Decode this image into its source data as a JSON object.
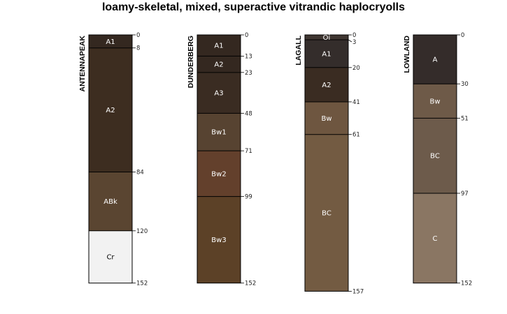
{
  "title": "loamy-skeletal, mixed, superactive vitrandic haplocryolls",
  "chart_data": {
    "type": "soil_profile",
    "depth_units": "cm",
    "profiles": [
      {
        "name": "ANTENNAPEAK",
        "bottom": 152,
        "horizons": [
          {
            "name": "A1",
            "top": 0,
            "bottom": 8,
            "color": "#342820",
            "text_color": "#ffffff"
          },
          {
            "name": "A2",
            "top": 8,
            "bottom": 84,
            "color": "#3d2d20",
            "text_color": "#ffffff"
          },
          {
            "name": "ABk",
            "top": 84,
            "bottom": 120,
            "color": "#5a4531",
            "text_color": "#ffffff"
          },
          {
            "name": "Cr",
            "top": 120,
            "bottom": 152,
            "color": "#f2f2f2",
            "text_color": "#000000"
          }
        ]
      },
      {
        "name": "DUNDERBERG",
        "bottom": 152,
        "horizons": [
          {
            "name": "A1",
            "top": 0,
            "bottom": 13,
            "color": "#342820",
            "text_color": "#ffffff"
          },
          {
            "name": "A2",
            "top": 13,
            "bottom": 23,
            "color": "#342820",
            "text_color": "#ffffff"
          },
          {
            "name": "A3",
            "top": 23,
            "bottom": 48,
            "color": "#3a2c22",
            "text_color": "#ffffff"
          },
          {
            "name": "Bw1",
            "top": 48,
            "bottom": 71,
            "color": "#574331",
            "text_color": "#ffffff"
          },
          {
            "name": "Bw2",
            "top": 71,
            "bottom": 99,
            "color": "#63402c",
            "text_color": "#ffffff"
          },
          {
            "name": "Bw3",
            "top": 99,
            "bottom": 152,
            "color": "#5c4127",
            "text_color": "#ffffff"
          }
        ]
      },
      {
        "name": "LAGALL",
        "bottom": 157,
        "horizons": [
          {
            "name": "Oi",
            "top": 0,
            "bottom": 3,
            "color": "#3f3631",
            "text_color": "#ffffff"
          },
          {
            "name": "A1",
            "top": 3,
            "bottom": 20,
            "color": "#342d2b",
            "text_color": "#ffffff"
          },
          {
            "name": "A2",
            "top": 20,
            "bottom": 41,
            "color": "#3a2c22",
            "text_color": "#ffffff"
          },
          {
            "name": "Bw",
            "top": 41,
            "bottom": 61,
            "color": "#6e5640",
            "text_color": "#ffffff"
          },
          {
            "name": "BC",
            "top": 61,
            "bottom": 157,
            "color": "#735b42",
            "text_color": "#ffffff"
          }
        ]
      },
      {
        "name": "LOWLAND",
        "bottom": 152,
        "horizons": [
          {
            "name": "A",
            "top": 0,
            "bottom": 30,
            "color": "#342c2a",
            "text_color": "#ffffff"
          },
          {
            "name": "Bw",
            "top": 30,
            "bottom": 51,
            "color": "#6e5a48",
            "text_color": "#ffffff"
          },
          {
            "name": "BC",
            "top": 51,
            "bottom": 97,
            "color": "#6d5b4b",
            "text_color": "#ffffff"
          },
          {
            "name": "C",
            "top": 97,
            "bottom": 152,
            "color": "#8a7663",
            "text_color": "#ffffff"
          }
        ]
      }
    ],
    "depth_labels": [
      {
        "profile": "ANTENNAPEAK",
        "values": [
          "0",
          "8",
          "84",
          "120",
          "152"
        ]
      },
      {
        "profile": "DUNDERBERG",
        "values": [
          "0",
          "13",
          "23",
          "48",
          "71",
          "99",
          "152"
        ]
      },
      {
        "profile": "LAGALL",
        "values": [
          "0",
          "3",
          "20",
          "41",
          "61",
          "157"
        ]
      },
      {
        "profile": "LOWLAND",
        "values": [
          "0",
          "30",
          "51",
          "97",
          "152"
        ]
      }
    ]
  }
}
